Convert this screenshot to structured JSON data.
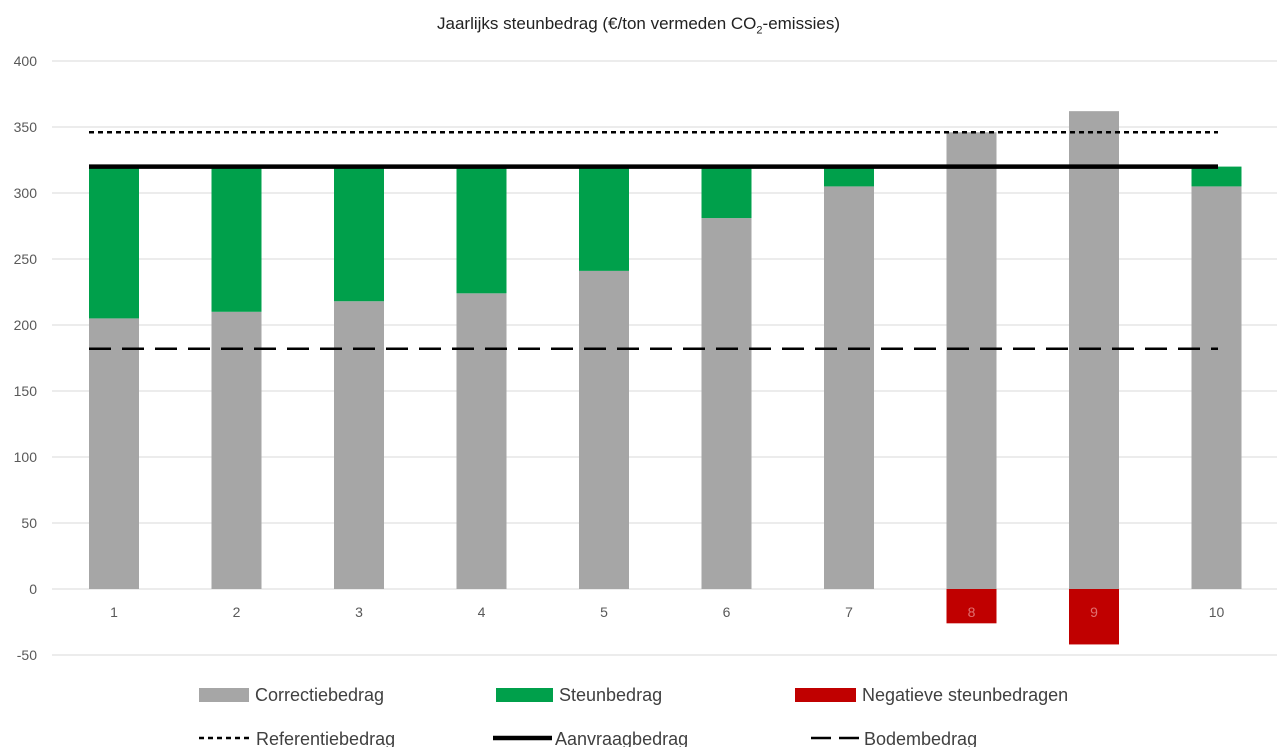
{
  "chart_data": {
    "type": "bar",
    "title": {
      "pre": "Jaarlijks steunbedrag (€/ton vermeden CO",
      "sub": "2",
      "post": "-emissies)"
    },
    "categories": [
      "1",
      "2",
      "3",
      "4",
      "5",
      "6",
      "7",
      "8",
      "9",
      "10"
    ],
    "ylim": [
      -50,
      400
    ],
    "yticks": [
      "400",
      "350",
      "300",
      "250",
      "200",
      "150",
      "100",
      "50",
      "0",
      "-50"
    ],
    "grid": true,
    "stacked": true,
    "series": [
      {
        "name": "Correctiebedrag",
        "color": "#a6a6a6",
        "values": [
          205,
          210,
          218,
          224,
          241,
          281,
          305,
          346,
          362,
          305
        ]
      },
      {
        "name": "Steunbedrag",
        "color": "#00a04b",
        "values": [
          115,
          110,
          102,
          96,
          79,
          39,
          15,
          0,
          0,
          15
        ]
      },
      {
        "name": "Negatieve steunbedragen",
        "color": "#c00000",
        "values": [
          0,
          0,
          0,
          0,
          0,
          0,
          0,
          -26,
          -42,
          0
        ]
      }
    ],
    "reference_lines": [
      {
        "name": "Referentiebedrag",
        "value": 346,
        "style": "dotted",
        "color": "#000000"
      },
      {
        "name": "Aanvraagbedrag",
        "value": 320,
        "style": "solid",
        "color": "#000000"
      },
      {
        "name": "Bodembedrag",
        "value": 182,
        "style": "dashed",
        "color": "#000000"
      }
    ],
    "legend": {
      "position": "bottom"
    }
  }
}
